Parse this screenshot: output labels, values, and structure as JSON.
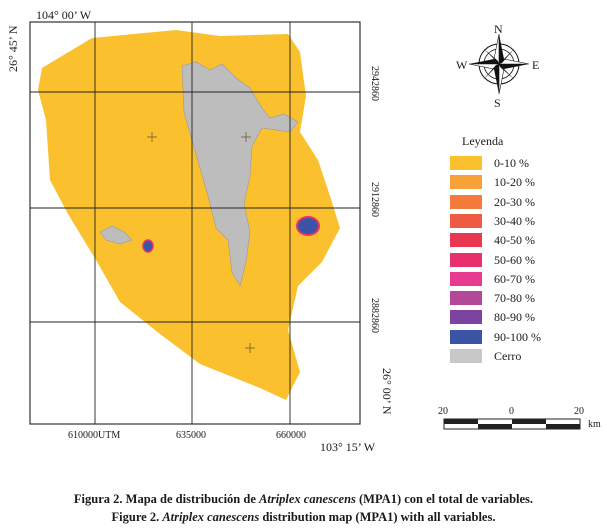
{
  "map": {
    "coords": {
      "top_left": "104° 00’ W",
      "left_top": "26° 45’ N",
      "right_1": "2942860",
      "right_2": "2912860",
      "right_3": "2882860",
      "right_bottom": "26° 00’ N",
      "bottom_1": "610000UTM",
      "bottom_2": "635000",
      "bottom_3": "660000",
      "bottom_right": "103° 15’ W"
    }
  },
  "compass": {
    "n": "N",
    "s": "S",
    "e": "E",
    "w": "W"
  },
  "legend": {
    "title": "Leyenda",
    "items": [
      {
        "label": "0-10 %",
        "color": "#fbc02d"
      },
      {
        "label": "10-20 %",
        "color": "#f7a239"
      },
      {
        "label": "20-30 %",
        "color": "#f47b3b"
      },
      {
        "label": "30-40 %",
        "color": "#ef5a43"
      },
      {
        "label": "40-50 %",
        "color": "#ea3852"
      },
      {
        "label": "50-60 %",
        "color": "#e7306c"
      },
      {
        "label": "60-70 %",
        "color": "#e63b8f"
      },
      {
        "label": "70-80 %",
        "color": "#b3489a"
      },
      {
        "label": "80-90 %",
        "color": "#7c44a0"
      },
      {
        "label": "90-100 %",
        "color": "#3b55a4"
      },
      {
        "label": "Cerro",
        "color": "#c8c8c8"
      }
    ]
  },
  "scale": {
    "left": "20",
    "mid": "0",
    "right": "20",
    "unit": "km"
  },
  "caption": {
    "line1_pre": "Figura 2. Mapa de distribución de ",
    "line1_species": "Atriplex canescens",
    "line1_post": " (MPA1) con el total de variables.",
    "line2_pre": "Figure 2. ",
    "line2_species": "Atriplex canescens",
    "line2_post": " distribution map (MPA1) with all variables."
  }
}
